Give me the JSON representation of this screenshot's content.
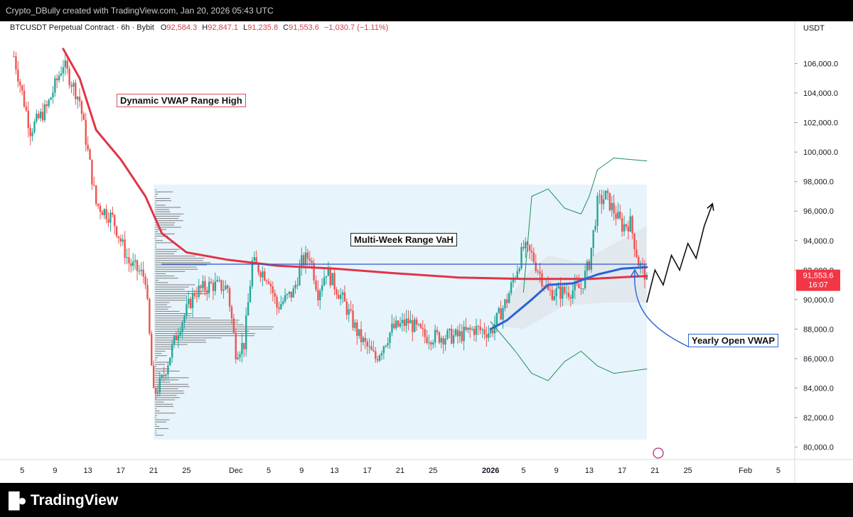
{
  "header": {
    "caption": "Crypto_DBully created with TradingView.com, Jan 20, 2026 05:43 UTC"
  },
  "legend": {
    "symbol": "BTCUSDT Perpetual Contract · 6h · Bybit",
    "open_label": "O",
    "open": "92,584.3",
    "high_label": "H",
    "high": "92,847.1",
    "low_label": "L",
    "low": "91,235.8",
    "close_label": "C",
    "close": "91,553.6",
    "change": "−1,030.7 (−1.11%)"
  },
  "price_axis": {
    "currency": "USDT",
    "last_price": "91,553.6",
    "countdown": "16:07"
  },
  "annotations": {
    "dynamic_vwap": "Dynamic VWAP Range High",
    "range_vah": "Multi-Week Range VaH",
    "yearly_vwap": "Yearly Open VWAP"
  },
  "footer": {
    "brand": "TradingView"
  },
  "colors": {
    "up": "#26a69a",
    "down": "#ef5350",
    "dynamic_vwap": "#e03546",
    "yearly_vwap": "#2962d9",
    "vah_line": "#2f55c9",
    "bands": "#1e8e5a",
    "range_box": "#e8f4fb"
  },
  "chart_data": {
    "type": "candlestick",
    "symbol": "BTCUSDT Perpetual Contract",
    "timeframe": "6h",
    "y_axis": {
      "ticks": [
        80000,
        82000,
        84000,
        86000,
        88000,
        90000,
        92000,
        94000,
        96000,
        98000,
        100000,
        102000,
        104000,
        106000
      ],
      "tick_labels": [
        "80,000.0",
        "82,000.0",
        "84,000.0",
        "86,000.0",
        "88,000.0",
        "90,000.0",
        "92,000.0",
        "94,000.0",
        "96,000.0",
        "98,000.0",
        "100,000.0",
        "102,000.0",
        "104,000.0",
        "106,000.0"
      ],
      "ylim": [
        79400,
        108000
      ]
    },
    "x_axis": {
      "ticks": [
        "2025-11-05",
        "2025-11-09",
        "2025-11-13",
        "2025-11-17",
        "2025-11-21",
        "2025-11-25",
        "2025-12-01",
        "2025-12-05",
        "2025-12-09",
        "2025-12-13",
        "2025-12-17",
        "2025-12-21",
        "2025-12-25",
        "2026-01-01",
        "2026-01-05",
        "2026-01-09",
        "2026-01-13",
        "2026-01-17",
        "2026-01-21",
        "2026-01-25",
        "2026-02-01",
        "2026-02-05"
      ],
      "tick_labels": [
        "5",
        "9",
        "13",
        "17",
        "21",
        "25",
        "Dec",
        "5",
        "9",
        "13",
        "17",
        "21",
        "25",
        "2026",
        "5",
        "9",
        "13",
        "17",
        "21",
        "25",
        "Feb",
        "5"
      ]
    },
    "close_path": [
      [
        "2025-11-04",
        106500
      ],
      [
        "2025-11-06",
        101500
      ],
      [
        "2025-11-08",
        103000
      ],
      [
        "2025-11-10",
        106000
      ],
      [
        "2025-11-12",
        103500
      ],
      [
        "2025-11-14",
        96500
      ],
      [
        "2025-11-16",
        95500
      ],
      [
        "2025-11-18",
        92500
      ],
      [
        "2025-11-20",
        91500
      ],
      [
        "2025-11-21",
        83500
      ],
      [
        "2025-11-22",
        84500
      ],
      [
        "2025-11-24",
        88000
      ],
      [
        "2025-11-26",
        90500
      ],
      [
        "2025-11-28",
        91000
      ],
      [
        "2025-11-30",
        90800
      ],
      [
        "2025-12-01",
        86500
      ],
      [
        "2025-12-02",
        87000
      ],
      [
        "2025-12-03",
        92500
      ],
      [
        "2025-12-05",
        91500
      ],
      [
        "2025-12-06",
        89500
      ],
      [
        "2025-12-08",
        90500
      ],
      [
        "2025-12-09",
        92500
      ],
      [
        "2025-12-10",
        93000
      ],
      [
        "2025-12-11",
        90500
      ],
      [
        "2025-12-12",
        92000
      ],
      [
        "2025-12-14",
        90000
      ],
      [
        "2025-12-16",
        87500
      ],
      [
        "2025-12-18",
        86000
      ],
      [
        "2025-12-20",
        88000
      ],
      [
        "2025-12-22",
        88500
      ],
      [
        "2025-12-24",
        87500
      ],
      [
        "2025-12-26",
        87500
      ],
      [
        "2025-12-28",
        87500
      ],
      [
        "2025-12-30",
        88000
      ],
      [
        "2026-01-01",
        87800
      ],
      [
        "2026-01-03",
        90000
      ],
      [
        "2026-01-05",
        93500
      ],
      [
        "2026-01-06",
        93000
      ],
      [
        "2026-01-08",
        90500
      ],
      [
        "2026-01-10",
        90500
      ],
      [
        "2026-01-12",
        90800
      ],
      [
        "2026-01-13",
        92500
      ],
      [
        "2026-01-14",
        96500
      ],
      [
        "2026-01-15",
        97000
      ],
      [
        "2026-01-17",
        95000
      ],
      [
        "2026-01-18",
        95200
      ],
      [
        "2026-01-19",
        92500
      ],
      [
        "2026-01-20",
        91553.6
      ]
    ],
    "series": [
      {
        "name": "Dynamic VWAP Range High",
        "color": "#e03546",
        "points": [
          [
            "2025-11-10",
            107000
          ],
          [
            "2025-11-12",
            105000
          ],
          [
            "2025-11-14",
            101500
          ],
          [
            "2025-11-17",
            99500
          ],
          [
            "2025-11-20",
            97000
          ],
          [
            "2025-11-22",
            94500
          ],
          [
            "2025-11-25",
            93200
          ],
          [
            "2025-11-30",
            92700
          ],
          [
            "2025-12-06",
            92300
          ],
          [
            "2025-12-13",
            92100
          ],
          [
            "2025-12-20",
            91800
          ],
          [
            "2025-12-28",
            91500
          ],
          [
            "2026-01-05",
            91400
          ],
          [
            "2026-01-13",
            91400
          ],
          [
            "2026-01-20",
            91600
          ]
        ]
      },
      {
        "name": "Yearly Open VWAP",
        "color": "#2962d9",
        "points": [
          [
            "2026-01-01",
            88000
          ],
          [
            "2026-01-03",
            88600
          ],
          [
            "2026-01-06",
            90000
          ],
          [
            "2026-01-08",
            91000
          ],
          [
            "2026-01-11",
            91100
          ],
          [
            "2026-01-14",
            91700
          ],
          [
            "2026-01-17",
            92100
          ],
          [
            "2026-01-20",
            92200
          ]
        ]
      },
      {
        "name": "Multi-Week Range VaH",
        "color": "#2f55c9",
        "points": [
          [
            "2025-11-22",
            92400
          ],
          [
            "2026-01-20",
            92400
          ]
        ]
      },
      {
        "name": "Upper Band",
        "color": "#1e8e5a",
        "points": [
          [
            "2026-01-05",
            90500
          ],
          [
            "2026-01-06",
            97000
          ],
          [
            "2026-01-08",
            97500
          ],
          [
            "2026-01-10",
            96200
          ],
          [
            "2026-01-12",
            95800
          ],
          [
            "2026-01-13",
            97000
          ],
          [
            "2026-01-14",
            98800
          ],
          [
            "2026-01-16",
            99600
          ],
          [
            "2026-01-20",
            99400
          ]
        ]
      },
      {
        "name": "Lower Band",
        "color": "#1e8e5a",
        "points": [
          [
            "2026-01-01",
            88500
          ],
          [
            "2026-01-04",
            86500
          ],
          [
            "2026-01-06",
            85000
          ],
          [
            "2026-01-08",
            84500
          ],
          [
            "2026-01-10",
            85800
          ],
          [
            "2026-01-12",
            86500
          ],
          [
            "2026-01-14",
            85500
          ],
          [
            "2026-01-16",
            85000
          ],
          [
            "2026-01-20",
            85300
          ]
        ]
      }
    ],
    "range_box": {
      "x": [
        "2025-11-21",
        "2026-01-20"
      ],
      "y": [
        80500,
        97800
      ]
    },
    "projection": [
      [
        "2026-01-20",
        89800
      ],
      [
        "2026-01-21",
        92000
      ],
      [
        "2026-01-22",
        91000
      ],
      [
        "2026-01-23",
        93000
      ],
      [
        "2026-01-24",
        92000
      ],
      [
        "2026-01-25",
        93800
      ],
      [
        "2026-01-26",
        92800
      ],
      [
        "2026-01-27",
        95000
      ],
      [
        "2026-01-28",
        96500
      ]
    ]
  }
}
